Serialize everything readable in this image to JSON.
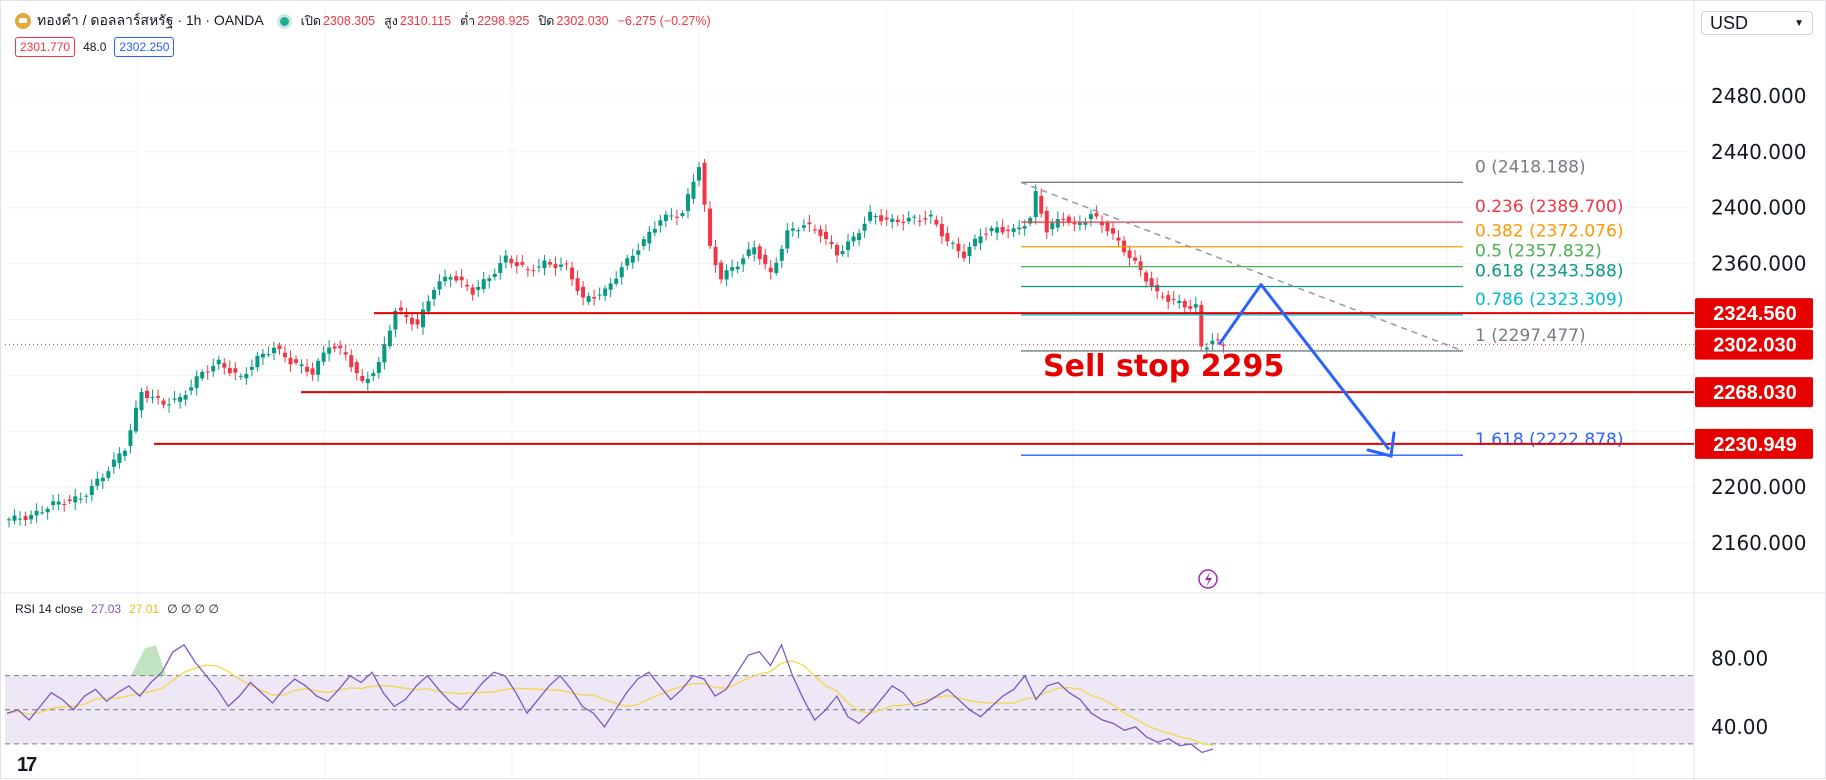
{
  "header": {
    "symbol": "ทองคำ / ดอลลาร์สหรัฐ · 1h · OANDA",
    "open_label": "เปิด",
    "open": "2308.305",
    "high_label": "สูง",
    "high": "2310.115",
    "low_label": "ต่ำ",
    "low": "2298.925",
    "close_label": "ปิด",
    "close": "2302.030",
    "change": "−6.275 (−0.27%)"
  },
  "quote": {
    "sell": "2301.770",
    "spread": "48.0",
    "buy": "2302.250"
  },
  "currency": {
    "selected": "USD",
    "icon": "chevron-down-icon"
  },
  "rsi_legend": {
    "name": "RSI 14 close",
    "value1": "27.03",
    "value2": "27.01",
    "extras": "∅ ∅ ∅ ∅"
  },
  "logo": "17",
  "colors": {
    "up": "#089981",
    "down": "#f23645",
    "level_red": "#e60000",
    "projection": "#2962ff",
    "rsi_line": "#7e57c2",
    "rsi_ma": "#f5d64a",
    "rsi_band": "#ede7f6"
  },
  "chart_data": [
    {
      "type": "candlestick",
      "title": "ทองคำ / ดอลลาร์สหรัฐ · 1h · OANDA",
      "ylim": [
        2150,
        2500
      ],
      "yticks": [
        2160,
        2200,
        2240,
        2280,
        2320,
        2360,
        2400,
        2440,
        2480
      ],
      "ytick_labels": [
        "2160.000",
        "2200.000",
        "2240.000",
        "2280.000",
        "2320.000",
        "2360.000",
        "2400.000",
        "2440.000",
        "2480.000"
      ],
      "price_path_keypoints": [
        [
          0,
          2177
        ],
        [
          4,
          2179
        ],
        [
          8,
          2188
        ],
        [
          13,
          2192
        ],
        [
          17,
          2208
        ],
        [
          21,
          2228
        ],
        [
          24,
          2268
        ],
        [
          28,
          2260
        ],
        [
          31,
          2263
        ],
        [
          35,
          2282
        ],
        [
          38,
          2289
        ],
        [
          42,
          2278
        ],
        [
          45,
          2292
        ],
        [
          48,
          2300
        ],
        [
          51,
          2290
        ],
        [
          55,
          2282
        ],
        [
          58,
          2302
        ],
        [
          61,
          2295
        ],
        [
          64,
          2274
        ],
        [
          67,
          2288
        ],
        [
          70,
          2327
        ],
        [
          74,
          2316
        ],
        [
          77,
          2343
        ],
        [
          80,
          2352
        ],
        [
          84,
          2340
        ],
        [
          87,
          2350
        ],
        [
          90,
          2364
        ],
        [
          94,
          2355
        ],
        [
          97,
          2360
        ],
        [
          101,
          2358
        ],
        [
          104,
          2334
        ],
        [
          108,
          2340
        ],
        [
          111,
          2357
        ],
        [
          115,
          2376
        ],
        [
          118,
          2392
        ],
        [
          122,
          2396
        ],
        [
          125,
          2431
        ],
        [
          127,
          2371
        ],
        [
          129,
          2350
        ],
        [
          132,
          2360
        ],
        [
          135,
          2372
        ],
        [
          138,
          2352
        ],
        [
          141,
          2382
        ],
        [
          144,
          2388
        ],
        [
          147,
          2382
        ],
        [
          150,
          2367
        ],
        [
          153,
          2378
        ],
        [
          156,
          2395
        ],
        [
          160,
          2390
        ],
        [
          164,
          2392
        ],
        [
          167,
          2393
        ],
        [
          170,
          2376
        ],
        [
          173,
          2366
        ],
        [
          176,
          2381
        ],
        [
          179,
          2385
        ],
        [
          182,
          2383
        ],
        [
          185,
          2392
        ],
        [
          186,
          2410
        ],
        [
          188,
          2384
        ],
        [
          191,
          2394
        ],
        [
          193,
          2386
        ],
        [
          196,
          2395
        ],
        [
          199,
          2385
        ],
        [
          202,
          2370
        ],
        [
          205,
          2355
        ],
        [
          208,
          2338
        ],
        [
          211,
          2333
        ],
        [
          214,
          2329
        ],
        [
          215,
          2329
        ],
        [
          216,
          2300
        ],
        [
          217,
          2302
        ],
        [
          218,
          2305
        ],
        [
          220,
          2302
        ]
      ],
      "horizontal_levels": [
        {
          "price": 2324.56,
          "label": "2324.560"
        },
        {
          "price": 2302.03,
          "label": "2302.030",
          "style": "dotted"
        },
        {
          "price": 2268.03,
          "label": "2268.030"
        },
        {
          "price": 2230.949,
          "label": "2230.949"
        }
      ],
      "fibonacci": [
        {
          "ratio": "0",
          "price": "2418.188",
          "color": "#787b86"
        },
        {
          "ratio": "0.236",
          "price": "2389.700",
          "color": "#f23645"
        },
        {
          "ratio": "0.382",
          "price": "2372.076",
          "color": "#ff9800"
        },
        {
          "ratio": "0.5",
          "price": "2357.832",
          "color": "#4caf50"
        },
        {
          "ratio": "0.618",
          "price": "2343.588",
          "color": "#089981"
        },
        {
          "ratio": "0.786",
          "price": "2323.309",
          "color": "#00bcd4"
        },
        {
          "ratio": "1",
          "price": "2297.477",
          "color": "#787b86"
        },
        {
          "ratio": "1.618",
          "price": "2222.878",
          "color": "#2962ff"
        }
      ],
      "annotations": [
        {
          "text": "Sell stop 2295",
          "color": "#e60000"
        }
      ]
    },
    {
      "type": "line",
      "name": "RSI 14 close",
      "ylim": [
        20,
        95
      ],
      "yticks": [
        40,
        80
      ],
      "ytick_labels": [
        "40.00",
        "80.00"
      ],
      "bands": [
        70,
        50,
        30
      ],
      "series": [
        {
          "values": [
            48,
            50,
            44,
            52,
            60,
            56,
            50,
            58,
            62,
            55,
            60,
            64,
            58,
            66,
            72,
            84,
            88,
            78,
            70,
            62,
            52,
            58,
            66,
            60,
            54,
            62,
            68,
            64,
            58,
            55,
            62,
            70,
            66,
            72,
            60,
            52,
            56,
            64,
            70,
            62,
            55,
            50,
            58,
            66,
            72,
            70,
            60,
            48,
            56,
            64,
            70,
            62,
            52,
            48,
            40,
            50,
            60,
            68,
            72,
            64,
            56,
            62,
            70,
            68,
            58,
            62,
            72,
            82,
            84,
            76,
            88,
            70,
            56,
            44,
            50,
            58,
            46,
            42,
            48,
            56,
            64,
            60,
            52,
            54,
            58,
            62,
            56,
            50,
            46,
            52,
            58,
            62,
            70,
            56,
            64,
            66,
            60,
            56,
            48,
            44,
            42,
            38,
            40,
            34,
            31,
            33,
            29,
            30,
            25,
            27
          ]
        }
      ]
    }
  ]
}
